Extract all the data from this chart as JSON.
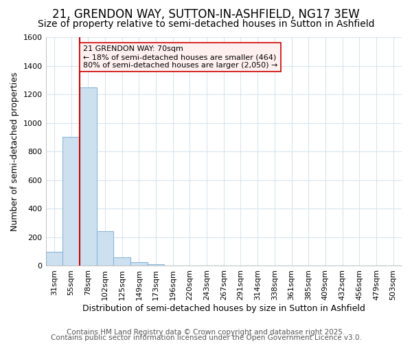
{
  "title": "21, GRENDON WAY, SUTTON-IN-ASHFIELD, NG17 3EW",
  "subtitle": "Size of property relative to semi-detached houses in Sutton in Ashfield",
  "xlabel": "Distribution of semi-detached houses by size in Sutton in Ashfield",
  "ylabel": "Number of semi-detached properties",
  "footer1": "Contains HM Land Registry data © Crown copyright and database right 2025.",
  "footer2": "Contains public sector information licensed under the Open Government Licence v3.0.",
  "bar_labels": [
    "31sqm",
    "55sqm",
    "78sqm",
    "102sqm",
    "125sqm",
    "149sqm",
    "173sqm",
    "196sqm",
    "220sqm",
    "243sqm",
    "267sqm",
    "291sqm",
    "314sqm",
    "338sqm",
    "361sqm",
    "385sqm",
    "409sqm",
    "432sqm",
    "456sqm",
    "479sqm",
    "503sqm"
  ],
  "bar_values": [
    100,
    900,
    1250,
    245,
    60,
    25,
    10,
    0,
    0,
    0,
    0,
    0,
    0,
    0,
    0,
    0,
    0,
    0,
    0,
    0,
    0
  ],
  "bar_color": "#cce0f0",
  "bar_edge_color": "#8ab8d8",
  "background_color": "#ffffff",
  "grid_color": "#d8e4f0",
  "ylim": [
    0,
    1600
  ],
  "yticks": [
    0,
    200,
    400,
    600,
    800,
    1000,
    1200,
    1400,
    1600
  ],
  "property_label": "21 GRENDON WAY: 70sqm",
  "smaller_pct": "18%",
  "smaller_count": "464",
  "larger_pct": "80%",
  "larger_count": "2,050",
  "vline_color": "#cc0000",
  "annotation_box_facecolor": "#fff0f0",
  "annotation_border_color": "#cc0000",
  "title_fontsize": 12,
  "subtitle_fontsize": 10,
  "xlabel_fontsize": 9,
  "ylabel_fontsize": 9,
  "tick_fontsize": 8,
  "annotation_fontsize": 8,
  "footer_fontsize": 7.5
}
